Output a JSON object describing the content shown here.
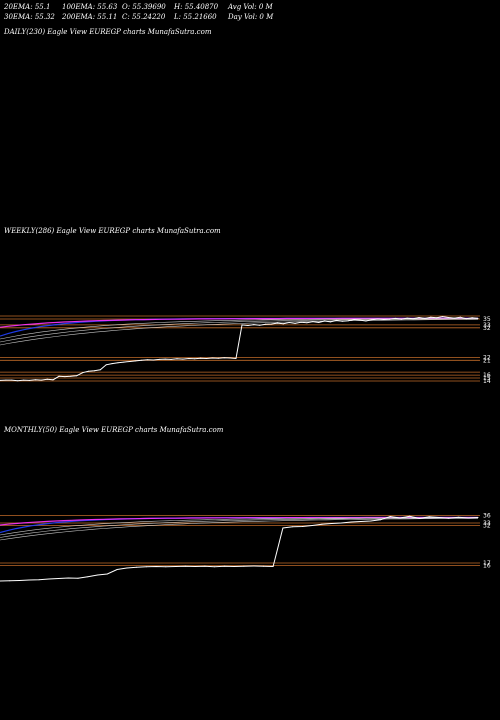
{
  "header": {
    "ema20": "20EMA: 55.1",
    "ema100": "100EMA: 55.63",
    "open": "O: 55.39690",
    "high": "H: 55.40870",
    "avg_vol": "Avg Vol: 0  M",
    "ema30": "30EMA: 55.32",
    "ema200": "200EMA: 55.11",
    "close": "C: 55.24220",
    "low": "L: 55.21660",
    "day_vol": "Day Vol: 0  M"
  },
  "panels": {
    "daily_title": "DAILY(230) Eagle   View  EUREGP charts MunafaSutra.com",
    "weekly_title": "WEEKLY(286) Eagle   View  EUREGP charts MunafaSutra.com",
    "monthly_title": "MONTHLY(50) Eagle   View  EUREGP charts MunafaSutra.com"
  },
  "colors": {
    "background": "#000000",
    "price": "#ffffff",
    "level_lines": "#c06a28",
    "ema_blue": "#2040ff",
    "ema_magenta": "#ff33ff",
    "ema_white": "#dddddd"
  },
  "chart_data": [
    {
      "type": "line",
      "panel": "weekly",
      "title": "WEEKLY(286) Eagle   View  EUREGP charts MunafaSutra.com",
      "ylim": [
        14,
        36
      ],
      "y_tick_labels": [
        "35",
        "33",
        "32",
        "22",
        "21",
        "16",
        "15",
        "14"
      ],
      "level_lines": [
        36,
        35,
        33,
        32,
        22,
        21,
        17,
        16,
        15,
        14
      ],
      "series": [
        {
          "values": [
            14.2,
            14.3,
            14.3,
            14.1,
            14.3,
            14.2,
            14.4,
            14.3,
            14.6,
            14.4,
            15.6,
            15.5,
            15.6,
            15.8,
            16.8,
            17.3,
            17.5,
            17.8,
            19.5,
            19.9,
            20.2,
            20.4,
            20.6,
            20.8,
            21.0,
            21.2,
            21.1,
            21.3,
            21.4,
            21.3,
            21.5,
            21.4,
            21.6,
            21.5,
            21.7,
            21.6,
            21.8,
            21.7,
            21.9,
            21.8,
            21.6,
            33.0,
            32.8,
            33.1,
            32.9,
            33.2,
            33.3,
            33.6,
            33.4,
            33.8,
            33.5,
            33.9,
            33.7,
            34.1,
            33.8,
            34.3,
            34.0,
            34.5,
            34.2,
            34.4,
            34.8,
            34.6,
            34.3,
            34.7,
            35.0,
            34.8,
            34.9,
            35.2,
            34.9,
            35.3,
            35.1,
            35.5,
            35.2,
            35.6,
            35.4,
            35.8,
            35.5,
            35.3,
            35.6,
            35.1,
            35.4,
            35.2
          ]
        }
      ]
    },
    {
      "type": "line",
      "panel": "monthly",
      "title": "MONTHLY(50) Eagle   View  EUREGP charts MunafaSutra.com",
      "ylim": [
        9,
        37
      ],
      "y_tick_labels": [
        "36",
        "33",
        "32",
        "17",
        "16"
      ],
      "level_lines": [
        36,
        33,
        32,
        17,
        16
      ],
      "series": [
        {
          "values": [
            9.8,
            9.9,
            10.0,
            10.2,
            10.3,
            10.6,
            10.8,
            11.0,
            10.9,
            11.5,
            12.2,
            12.6,
            14.4,
            15.0,
            15.3,
            15.5,
            15.6,
            15.5,
            15.6,
            15.7,
            15.6,
            15.7,
            15.5,
            15.7,
            15.6,
            15.7,
            15.8,
            15.7,
            15.6,
            31.0,
            31.5,
            31.6,
            32.0,
            32.5,
            32.8,
            33.0,
            33.4,
            33.6,
            33.8,
            34.3,
            35.6,
            35.0,
            35.7,
            34.8,
            35.5,
            35.2,
            34.9,
            35.3,
            35.0,
            35.2
          ]
        }
      ]
    }
  ]
}
